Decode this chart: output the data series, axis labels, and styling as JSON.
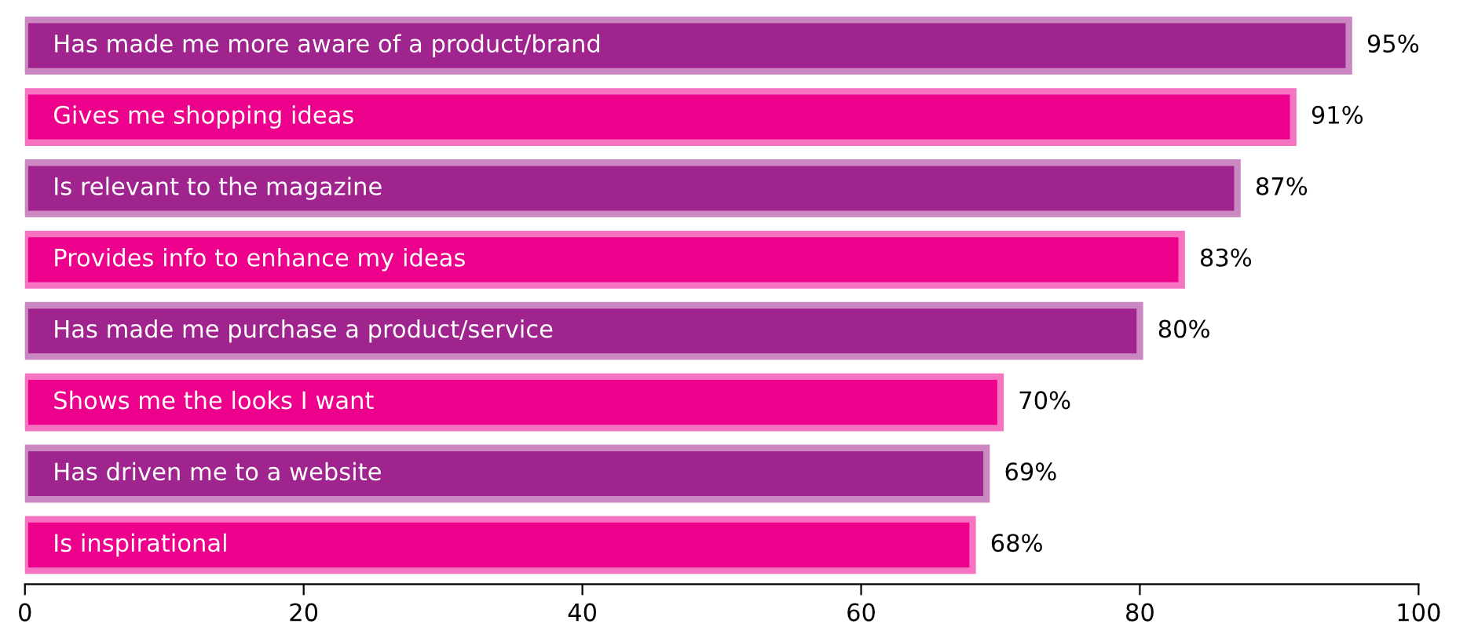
{
  "chart_data": {
    "type": "bar",
    "orientation": "horizontal",
    "categories": [
      "Has made me more aware of a product/brand",
      "Gives me shopping ideas",
      "Is relevant to the magazine",
      "Provides info to enhance my ideas",
      "Has made me purchase a product/service",
      "Shows me the looks I want",
      "Has driven me to a website",
      "Is inspirational"
    ],
    "values": [
      95,
      91,
      87,
      83,
      80,
      70,
      69,
      68
    ],
    "value_labels": [
      "95%",
      "91%",
      "87%",
      "83%",
      "80%",
      "70%",
      "69%",
      "68%"
    ],
    "colors": [
      "#a0248e",
      "#ec008c",
      "#a0248e",
      "#ec008c",
      "#a0248e",
      "#ec008c",
      "#a0248e",
      "#ec008c"
    ],
    "xlim": [
      0,
      100
    ],
    "xticks": [
      0,
      20,
      40,
      60,
      80,
      100
    ],
    "tick_labels": "x",
    "grid": false,
    "legend": false
  }
}
